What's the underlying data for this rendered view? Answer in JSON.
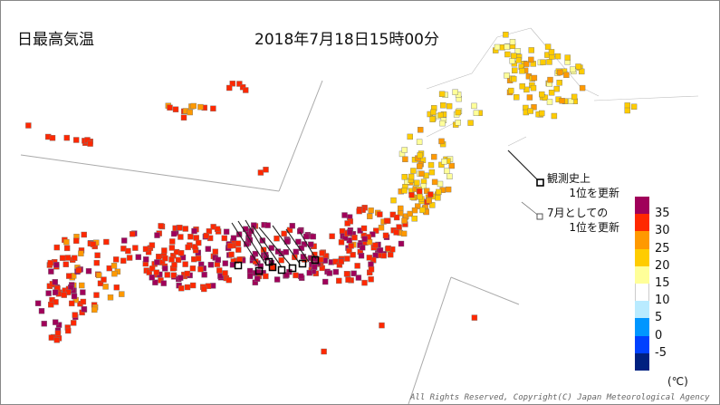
{
  "map_title": "日最高気温",
  "datetime": "2018年7月18日15時00分",
  "notes": {
    "record_all": [
      "観測史上",
      "1位を更新"
    ],
    "record_july": [
      "7月としての",
      "1位を更新"
    ]
  },
  "legend": {
    "levels": [
      {
        "label": "35",
        "color": "#a0005a"
      },
      {
        "label": "30",
        "color": "#ff2800"
      },
      {
        "label": "25",
        "color": "#ff9900"
      },
      {
        "label": "20",
        "color": "#ffcc00"
      },
      {
        "label": "15",
        "color": "#ffff99"
      },
      {
        "label": "10",
        "color": "#ffffff"
      },
      {
        "label": "5",
        "color": "#b9ebff"
      },
      {
        "label": "0",
        "color": "#0096ff"
      },
      {
        "label": "-5",
        "color": "#0041ff"
      },
      {
        "label": "",
        "color": "#002080"
      }
    ],
    "unit": "(℃)"
  },
  "copyright": "All Rights Reserved, Copyright(C) Japan Meteorological Agency"
}
